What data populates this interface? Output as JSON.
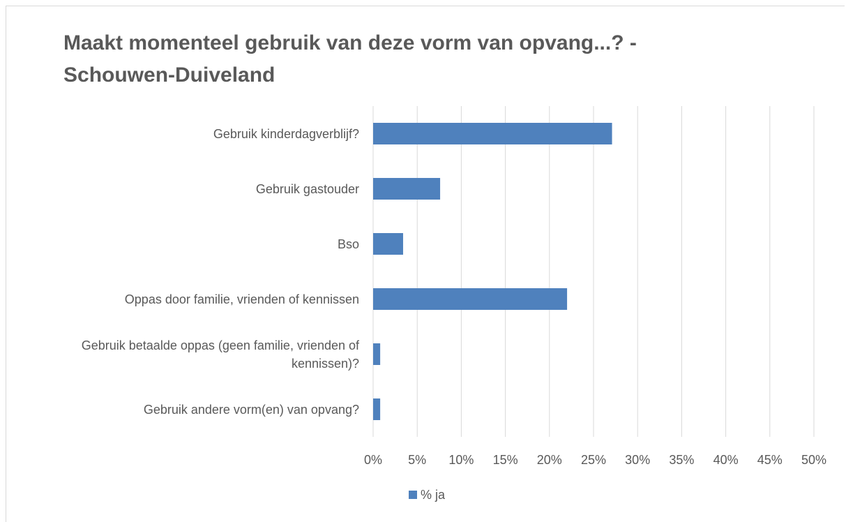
{
  "chart_data": {
    "type": "bar",
    "orientation": "horizontal",
    "title": "Maakt momenteel gebruik van deze vorm van opvang...? - Schouwen-Duiveland",
    "categories": [
      "Gebruik kinderdagverblijf?",
      "Gebruik gastouder",
      "Bso",
      "Oppas door familie, vrienden of kennissen",
      "Gebruik betaalde oppas (geen familie, vrienden of kennissen)?",
      "Gebruik andere vorm(en) van opvang?"
    ],
    "series": [
      {
        "name": "% ja",
        "color": "#4f81bd",
        "values": [
          27.1,
          7.6,
          3.4,
          22.0,
          0.8,
          0.8
        ]
      }
    ],
    "xlim": [
      0,
      50
    ],
    "xticks": [
      {
        "value": 0,
        "label": "0%"
      },
      {
        "value": 5,
        "label": "5%"
      },
      {
        "value": 10,
        "label": "10%"
      },
      {
        "value": 15,
        "label": "15%"
      },
      {
        "value": 20,
        "label": "20%"
      },
      {
        "value": 25,
        "label": "25%"
      },
      {
        "value": 30,
        "label": "30%"
      },
      {
        "value": 35,
        "label": "35%"
      },
      {
        "value": 40,
        "label": "40%"
      },
      {
        "value": 45,
        "label": "45%"
      },
      {
        "value": 50,
        "label": "50%"
      }
    ],
    "grid": true,
    "legend": "bottom"
  }
}
